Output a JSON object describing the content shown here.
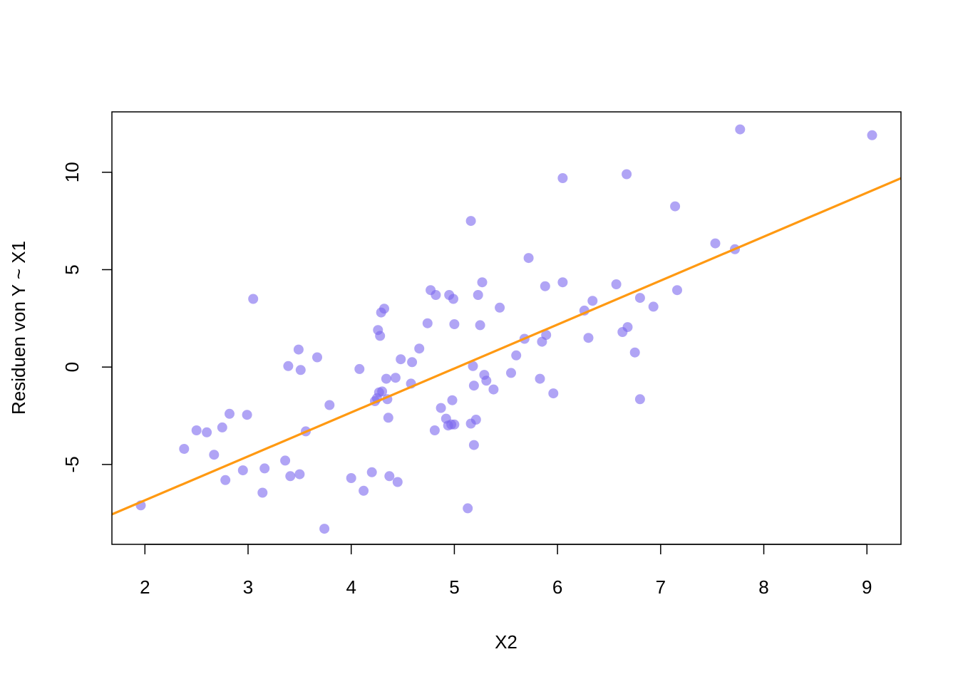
{
  "chart_data": {
    "type": "scatter",
    "title": "",
    "xlabel": "X2",
    "ylabel": "Residuen von Y ~ X1",
    "xlim": [
      1.68,
      9.33
    ],
    "ylim": [
      -9.1,
      13.1
    ],
    "x_ticks": [
      2,
      3,
      4,
      5,
      6,
      7,
      8,
      9
    ],
    "y_ticks": [
      -5,
      0,
      5,
      10
    ],
    "grid": false,
    "legend": "none",
    "point_color": "#7B68EE",
    "line_color": "#FF9912",
    "regression_line": {
      "intercept": -11.35,
      "slope": 2.2554
    },
    "points": [
      [
        1.96,
        -7.1
      ],
      [
        2.38,
        -4.2
      ],
      [
        2.5,
        -3.25
      ],
      [
        2.6,
        -3.35
      ],
      [
        2.67,
        -4.5
      ],
      [
        2.75,
        -3.1
      ],
      [
        2.78,
        -5.8
      ],
      [
        2.82,
        -2.4
      ],
      [
        2.95,
        -5.3
      ],
      [
        2.99,
        -2.45
      ],
      [
        3.05,
        3.5
      ],
      [
        3.14,
        -6.45
      ],
      [
        3.16,
        -5.2
      ],
      [
        3.36,
        -4.8
      ],
      [
        3.39,
        0.05
      ],
      [
        3.41,
        -5.6
      ],
      [
        3.49,
        0.9
      ],
      [
        3.5,
        -5.5
      ],
      [
        3.51,
        -0.15
      ],
      [
        3.56,
        -3.3
      ],
      [
        3.67,
        0.5
      ],
      [
        3.74,
        -8.3
      ],
      [
        3.79,
        -1.95
      ],
      [
        4.0,
        -5.7
      ],
      [
        4.08,
        -0.1
      ],
      [
        4.12,
        -6.35
      ],
      [
        4.2,
        -5.4
      ],
      [
        4.23,
        -1.75
      ],
      [
        4.25,
        -1.6
      ],
      [
        4.26,
        1.9
      ],
      [
        4.27,
        -1.3
      ],
      [
        4.28,
        1.6
      ],
      [
        4.29,
        2.8
      ],
      [
        4.3,
        -1.25
      ],
      [
        4.32,
        3.0
      ],
      [
        4.34,
        -0.6
      ],
      [
        4.35,
        -1.65
      ],
      [
        4.36,
        -2.6
      ],
      [
        4.37,
        -5.6
      ],
      [
        4.43,
        -0.55
      ],
      [
        4.45,
        -5.9
      ],
      [
        4.48,
        0.4
      ],
      [
        4.58,
        -0.85
      ],
      [
        4.59,
        0.25
      ],
      [
        4.66,
        0.95
      ],
      [
        4.74,
        2.25
      ],
      [
        4.77,
        3.95
      ],
      [
        4.81,
        -3.25
      ],
      [
        4.82,
        3.7
      ],
      [
        4.87,
        -2.1
      ],
      [
        4.92,
        -2.65
      ],
      [
        4.94,
        -3.0
      ],
      [
        4.95,
        3.7
      ],
      [
        4.97,
        -2.95
      ],
      [
        4.98,
        -1.7
      ],
      [
        4.99,
        3.5
      ],
      [
        5.0,
        2.2
      ],
      [
        5.0,
        -2.95
      ],
      [
        5.13,
        -7.25
      ],
      [
        5.16,
        7.5
      ],
      [
        5.16,
        -2.9
      ],
      [
        5.18,
        0.05
      ],
      [
        5.19,
        -0.95
      ],
      [
        5.19,
        -4.0
      ],
      [
        5.21,
        -2.7
      ],
      [
        5.23,
        3.7
      ],
      [
        5.25,
        2.15
      ],
      [
        5.27,
        4.35
      ],
      [
        5.29,
        -0.4
      ],
      [
        5.31,
        -0.7
      ],
      [
        5.38,
        -1.15
      ],
      [
        5.44,
        3.05
      ],
      [
        5.55,
        -0.3
      ],
      [
        5.6,
        0.6
      ],
      [
        5.68,
        1.45
      ],
      [
        5.72,
        5.6
      ],
      [
        5.83,
        -0.6
      ],
      [
        5.85,
        1.3
      ],
      [
        5.88,
        4.15
      ],
      [
        5.89,
        1.65
      ],
      [
        5.96,
        -1.35
      ],
      [
        6.05,
        9.7
      ],
      [
        6.05,
        4.35
      ],
      [
        6.26,
        2.9
      ],
      [
        6.3,
        1.5
      ],
      [
        6.34,
        3.4
      ],
      [
        6.57,
        4.25
      ],
      [
        6.63,
        1.8
      ],
      [
        6.67,
        9.9
      ],
      [
        6.68,
        2.05
      ],
      [
        6.75,
        0.75
      ],
      [
        6.8,
        3.55
      ],
      [
        6.8,
        -1.65
      ],
      [
        6.93,
        3.1
      ],
      [
        7.14,
        8.25
      ],
      [
        7.16,
        3.95
      ],
      [
        7.53,
        6.35
      ],
      [
        7.72,
        6.05
      ],
      [
        7.77,
        12.2
      ],
      [
        9.05,
        11.9
      ]
    ]
  }
}
